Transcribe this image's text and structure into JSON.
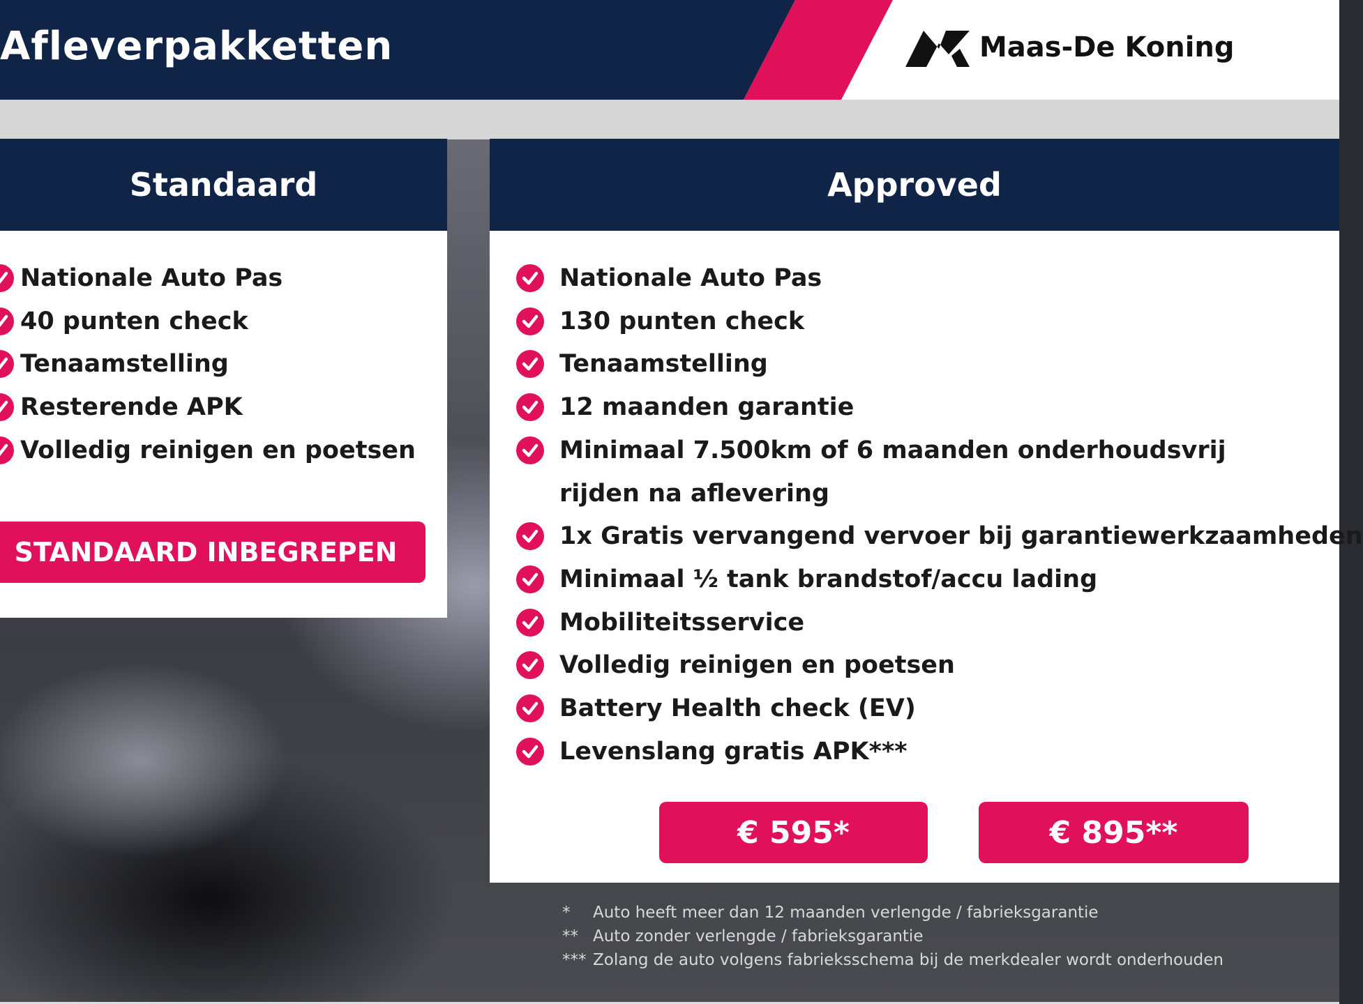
{
  "header": {
    "title": "Afleverpakketten",
    "brand": "Maas-De Koning"
  },
  "colors": {
    "navy": "#0f2447",
    "accent": "#e0105a"
  },
  "standard": {
    "title": "Standaard",
    "items": [
      "Nationale Auto Pas",
      "40 punten check",
      "Tenaamstelling",
      "Resterende APK",
      "Volledig reinigen en poetsen"
    ],
    "button": "STANDAARD INBEGREPEN"
  },
  "approved": {
    "title": "Approved",
    "items": [
      "Nationale Auto Pas",
      "130 punten check",
      "Tenaamstelling",
      "12 maanden garantie",
      "Minimaal 7.500km of 6 maanden onderhoudsvrij",
      "rijden na aflevering",
      "1x Gratis vervangend vervoer bij garantiewerkzaamheden",
      "Minimaal ½ tank brandstof/accu lading",
      "Mobiliteitsservice",
      "Volledig reinigen en poetsen",
      "Battery Health check (EV)",
      "Levenslang gratis APK***"
    ],
    "prices": [
      "€ 595*",
      "€ 895**"
    ]
  },
  "footnotes": [
    {
      "mark": "*",
      "text": "Auto heeft meer dan 12 maanden verlengde / fabrieksgarantie"
    },
    {
      "mark": "**",
      "text": "Auto zonder verlengde / fabrieksgarantie"
    },
    {
      "mark": "***",
      "text": "Zolang de auto volgens fabrieksschema bij de merkdealer wordt onderhouden"
    }
  ]
}
